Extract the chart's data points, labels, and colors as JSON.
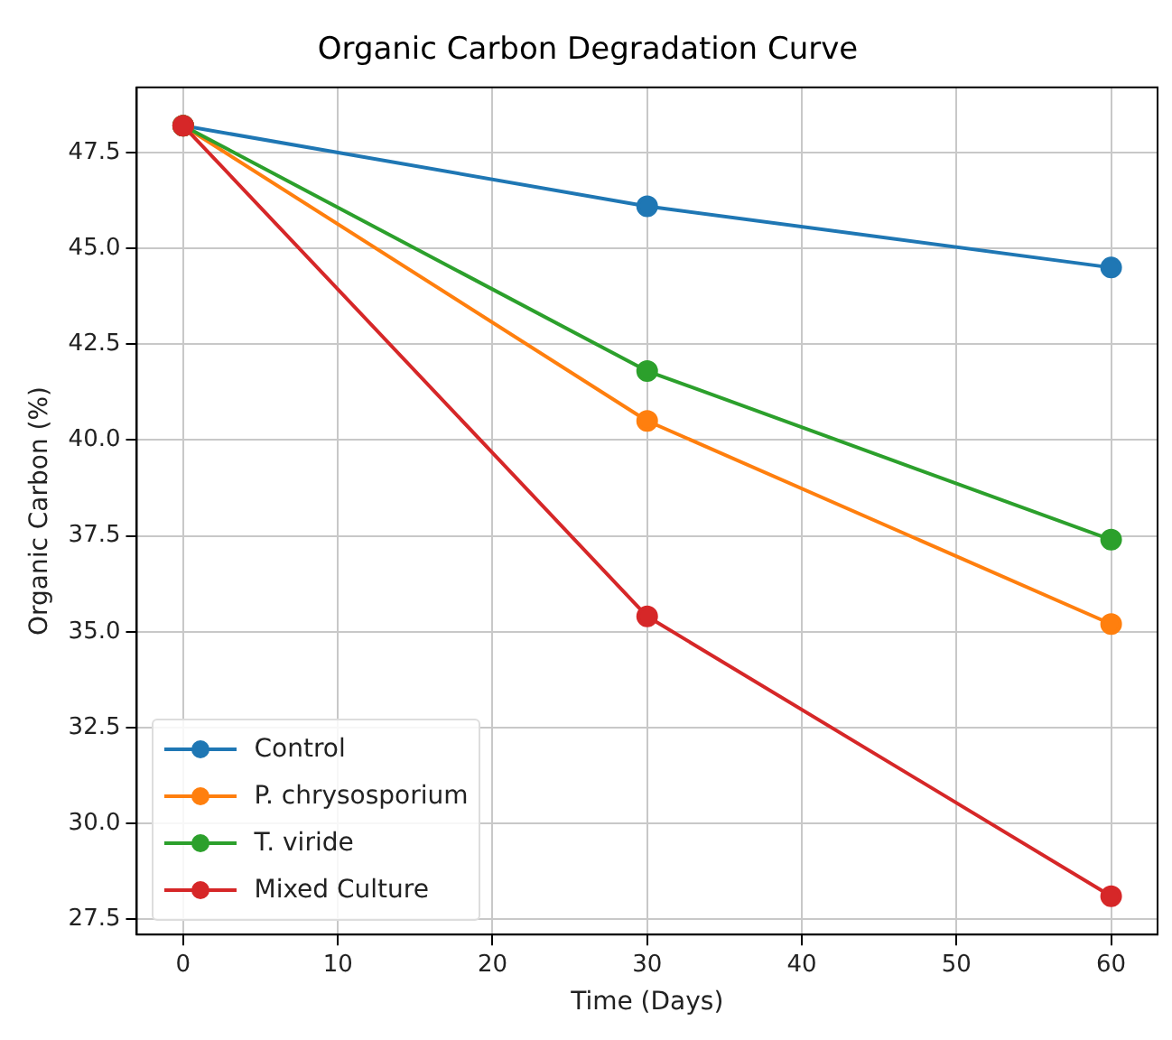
{
  "chart_data": {
    "type": "line",
    "title": "Organic Carbon Degradation Curve",
    "xlabel": "Time (Days)",
    "ylabel": "Organic Carbon (%)",
    "x": [
      0,
      30,
      60
    ],
    "xlim": [
      -3,
      63
    ],
    "xticks": [
      0,
      10,
      20,
      30,
      40,
      50,
      60
    ],
    "ylim": [
      27.1,
      49.2
    ],
    "yticks": [
      {
        "value": 27.5,
        "label": "27.5"
      },
      {
        "value": 30,
        "label": "30.0"
      },
      {
        "value": 32.5,
        "label": "32.5"
      },
      {
        "value": 35,
        "label": "35.0"
      },
      {
        "value": 37.5,
        "label": "37.5"
      },
      {
        "value": 40,
        "label": "40.0"
      },
      {
        "value": 42.5,
        "label": "42.5"
      },
      {
        "value": 45,
        "label": "45.0"
      },
      {
        "value": 47.5,
        "label": "47.5"
      }
    ],
    "series": [
      {
        "name": "Control",
        "color": "#1f77b4",
        "values": [
          48.2,
          46.1,
          44.5
        ]
      },
      {
        "name": "P. chrysosporium",
        "color": "#ff7f0e",
        "values": [
          48.2,
          40.5,
          35.2
        ]
      },
      {
        "name": "T. viride",
        "color": "#2ca02c",
        "values": [
          48.2,
          41.8,
          37.4
        ]
      },
      {
        "name": "Mixed Culture",
        "color": "#d62728",
        "values": [
          48.2,
          35.4,
          28.1
        ]
      }
    ],
    "grid": true,
    "legend": "bottom left",
    "marker": "circle",
    "line_style": "solid"
  }
}
